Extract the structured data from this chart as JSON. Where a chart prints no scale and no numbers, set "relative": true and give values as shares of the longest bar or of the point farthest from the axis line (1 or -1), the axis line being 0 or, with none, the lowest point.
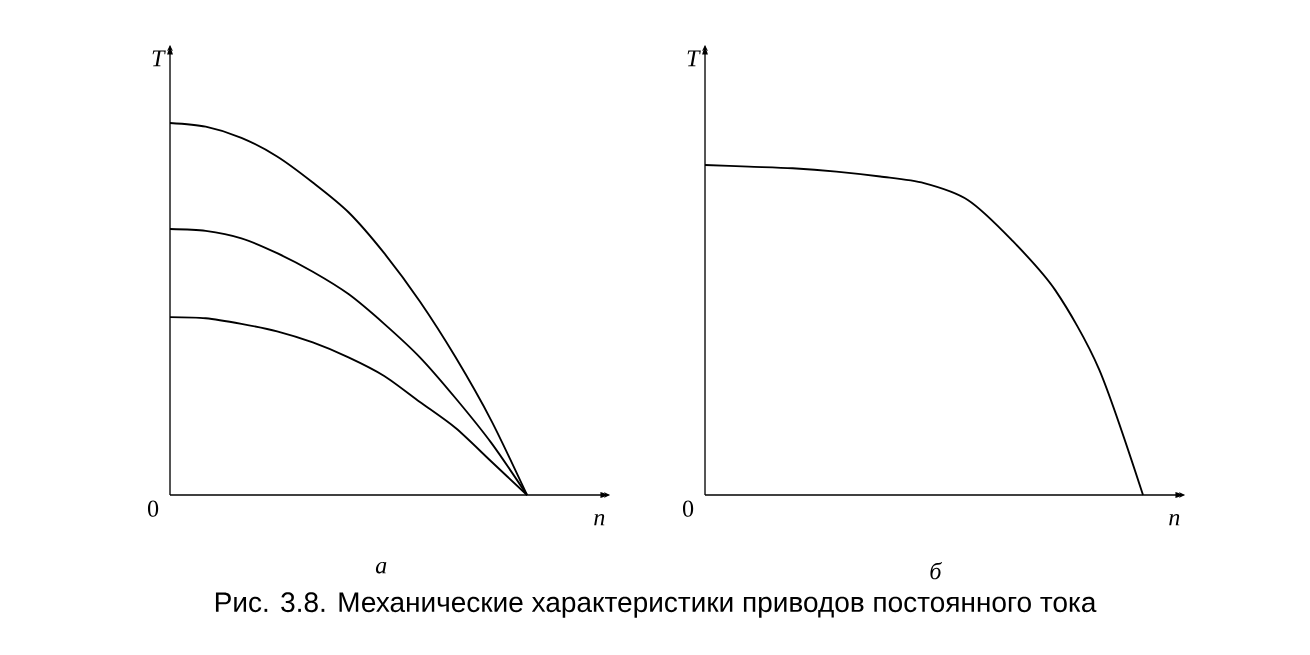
{
  "chart_data": [
    {
      "type": "line",
      "relative": true,
      "xlabel": "n",
      "ylabel": "T",
      "subtitle": "а",
      "categories": [
        null,
        null,
        null,
        null,
        null,
        null,
        null,
        null,
        null,
        null,
        null
      ],
      "series": [
        {
          "color": "#000000",
          "values": [
            1,
            0.99,
            0.96,
            0.91,
            0.84,
            0.76,
            0.65,
            0.52,
            0.37,
            0.2,
            0
          ]
        },
        {
          "color": "#000000",
          "values": [
            0.715,
            0.71,
            0.69,
            0.65,
            0.6,
            0.54,
            0.46,
            0.37,
            0.26,
            0.14,
            0
          ]
        },
        {
          "color": "#000000",
          "values": [
            0.478,
            0.475,
            0.46,
            0.44,
            0.41,
            0.37,
            0.32,
            0.25,
            0.18,
            0.09,
            0
          ]
        }
      ],
      "annotations": [
        "0",
        "Рис. 3.8. Механические характеристики приводов постоянного тока"
      ]
    },
    {
      "type": "line",
      "relative": true,
      "xlabel": "n",
      "ylabel": "T",
      "subtitle": "б",
      "categories": [
        null,
        null,
        null,
        null,
        null,
        null,
        null,
        null,
        null,
        null,
        null
      ],
      "series": [
        {
          "color": "#000000",
          "values": [
            1,
            0.995,
            0.99,
            0.98,
            0.965,
            0.945,
            0.894,
            0.773,
            0.62,
            0.38,
            0
          ]
        }
      ],
      "annotations": [
        "0"
      ]
    }
  ]
}
